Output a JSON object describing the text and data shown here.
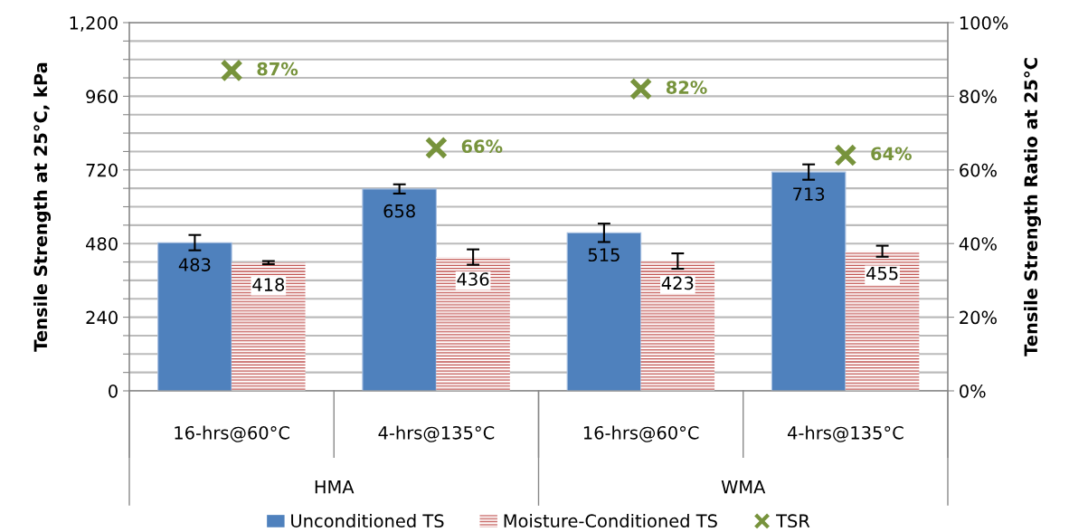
{
  "chart_data": {
    "type": "bar",
    "categories": [
      "16-hrs@60°C",
      "4-hrs@135°C",
      "16-hrs@60°C",
      "4-hrs@135°C"
    ],
    "annotations": [
      "HMA",
      "WMA"
    ],
    "ylabel": "Tensile Strength at 25°C, kPa",
    "y2label": "Tensile Strength Ratio at 25°C",
    "series": [
      {
        "name": "Unconditioned TS",
        "color": "#4f81bd",
        "values": [
          483,
          658,
          515,
          713
        ],
        "errors": [
          25,
          15,
          30,
          25
        ],
        "data_labels": true
      },
      {
        "name": "Moisture-Conditioned TS",
        "color": "#c0504d",
        "values": [
          418,
          436,
          423,
          455
        ],
        "errors": [
          5,
          25,
          25,
          18
        ],
        "data_labels": true
      },
      {
        "name": "TSR",
        "type": "scatter",
        "axis": "y2",
        "color": "#77933c",
        "marker": "cross",
        "values": [
          87,
          66,
          82,
          64
        ],
        "value_labels": [
          "87%",
          "66%",
          "82%",
          "64%"
        ]
      }
    ],
    "ylim": [
      0,
      1200
    ],
    "yticks": [
      0,
      {
        "value": 60,
        "label": null
      },
      {
        "value": 120,
        "label": null
      },
      {
        "value": 180,
        "label": null
      },
      240,
      {
        "value": 300,
        "label": null
      },
      {
        "value": 360,
        "label": null
      },
      {
        "value": 420,
        "label": null
      },
      480,
      {
        "value": 540,
        "label": null
      },
      {
        "value": 600,
        "label": null
      },
      {
        "value": 660,
        "label": null
      },
      720,
      {
        "value": 780,
        "label": null
      },
      {
        "value": 840,
        "label": null
      },
      {
        "value": 900,
        "label": null
      },
      960,
      {
        "value": 1020,
        "label": null
      },
      {
        "value": 1080,
        "label": null
      },
      {
        "value": 1140,
        "label": null
      },
      {
        "value": 1200,
        "label": "1,200"
      }
    ],
    "y2lim": [
      0,
      100
    ],
    "y2ticks": [
      {
        "value": 0,
        "label": "0%"
      },
      {
        "value": 20,
        "label": "20%"
      },
      {
        "value": 40,
        "label": "40%"
      },
      {
        "value": 60,
        "label": "60%"
      },
      {
        "value": 80,
        "label": "80%"
      },
      {
        "value": 100,
        "label": "100%"
      }
    ],
    "grid": "y",
    "legend": "bottom"
  }
}
